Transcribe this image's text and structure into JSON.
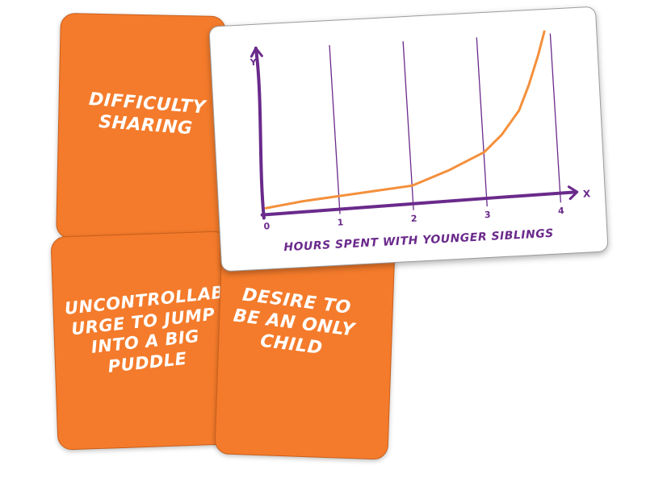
{
  "cards": {
    "difficulty_sharing": "DIFFICULTY SHARING",
    "uncontrollable_urge": "UNCONTROLLABLE URGE TO JUMP INTO A BIG PUDDLE",
    "desire_only_child": "DESIRE TO BE AN ONLY CHILD"
  },
  "colors": {
    "card_orange": "#f47b2b",
    "axis_purple": "#6a2a8b",
    "curve_orange": "#f4903c"
  },
  "chart_data": {
    "type": "line",
    "xlabel": "HOURS SPENT WITH YOUNGER SIBLINGS",
    "ylabel": "Y",
    "x_axis_letter": "X",
    "x_ticks": [
      "0",
      "1",
      "2",
      "3",
      "4"
    ],
    "xlim": [
      0,
      4
    ],
    "ylim": [
      0,
      10
    ],
    "grid": "vertical",
    "series": [
      {
        "x": [
          0,
          0.5,
          1,
          1.5,
          2,
          2.5,
          3,
          3.25,
          3.5,
          3.65,
          3.8,
          3.9
        ],
        "y": [
          0.2,
          0.5,
          0.7,
          0.9,
          1.1,
          1.9,
          2.9,
          3.9,
          5.3,
          6.8,
          8.6,
          10
        ]
      }
    ]
  }
}
